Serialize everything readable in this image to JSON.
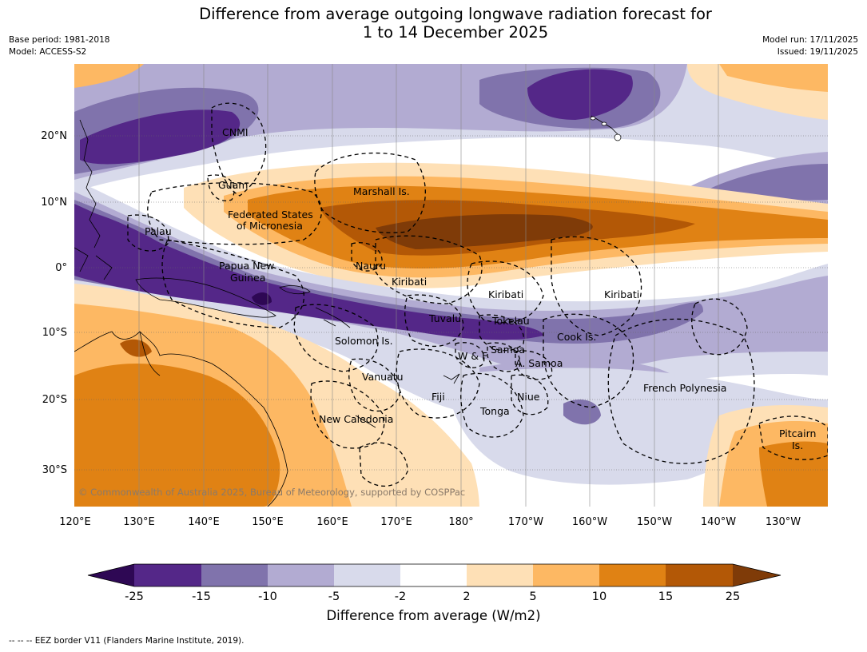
{
  "title": {
    "line1": "Difference from average outgoing longwave radiation forecast for",
    "line2": "1 to 14 December 2025"
  },
  "meta": {
    "base_period": "Base period: 1981-2018",
    "model": "Model: ACCESS-S2",
    "model_run": "Model run: 17/11/2025",
    "issued": "Issued: 19/11/2025"
  },
  "axes": {
    "lat_labels": [
      "20°N",
      "10°N",
      "0°",
      "10°S",
      "20°S",
      "30°S"
    ],
    "lon_labels": [
      "120°E",
      "130°E",
      "140°E",
      "150°E",
      "160°E",
      "170°E",
      "180°",
      "170°W",
      "160°W",
      "150°W",
      "140°W",
      "130°W"
    ]
  },
  "regions": {
    "cnmi": "CNMI",
    "guam": "Guam",
    "marshall": "Marshall Is.",
    "fsm_1": "Federated States",
    "fsm_2": "of Micronesia",
    "palau": "Palau",
    "png_1": "Papua New",
    "png_2": "Guinea",
    "nauru": "Nauru",
    "kiribati_w": "Kiribati",
    "kiribati_c": "Kiribati",
    "kiribati_e": "Kiribati",
    "tuvalu": "Tuvalu",
    "tokelau": "Tokelau",
    "cook": "Cook Is.",
    "solomon": "Solomon Is.",
    "wf": "W & F",
    "samoa": "Samoa",
    "asamoa": "A. Samoa",
    "vanuatu": "Vanuatu",
    "fiji": "Fiji",
    "niue": "Niue",
    "tonga": "Tonga",
    "fp": "French Polynesia",
    "newcal": "New Caledonia",
    "pitcairn_1": "Pitcairn",
    "pitcairn_2": "Is."
  },
  "copyright": "© Commonwealth of Australia 2025, Bureau of Meteorology, supported by COSPPac",
  "colorbar": {
    "title": "Difference from average (W/m2)",
    "ticks": [
      "-25",
      "-15",
      "-10",
      "-5",
      "-2",
      "2",
      "5",
      "10",
      "15",
      "25"
    ],
    "colors": [
      "#2e0854",
      "#542788",
      "#8073ac",
      "#b2abd2",
      "#d8daeb",
      "#ffffff",
      "#fee0b6",
      "#fdb863",
      "#e08214",
      "#b35806",
      "#7f3b08"
    ]
  },
  "footnote": "--  --  -- EEZ border V11 (Flanders Marine Institute, 2019)."
}
